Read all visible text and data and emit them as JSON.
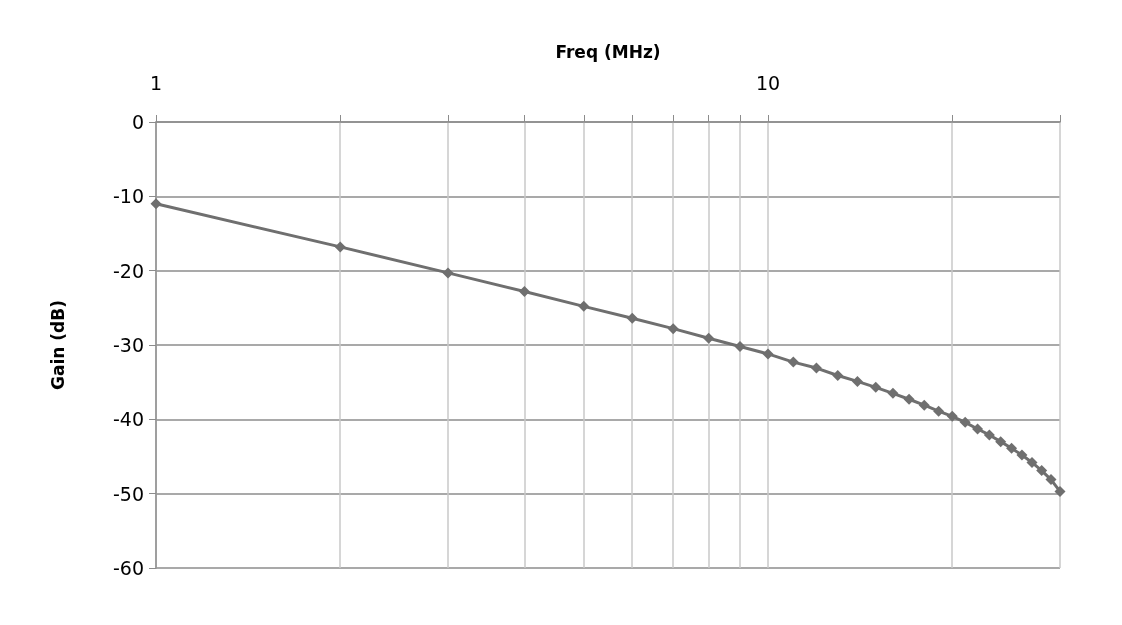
{
  "chart_data": {
    "type": "line",
    "xlabel": "Freq (MHz)",
    "ylabel": "Gain (dB)",
    "x": [
      1,
      2,
      3,
      4,
      5,
      6,
      7,
      8,
      9,
      10,
      11,
      12,
      13,
      14,
      15,
      16,
      17,
      18,
      19,
      20,
      21,
      22,
      23,
      24,
      25,
      26,
      27,
      28,
      29,
      30
    ],
    "series": [
      {
        "color": "#6f6f6f",
        "values": [
          -11.0,
          -16.8,
          -20.3,
          -22.8,
          -24.8,
          -26.4,
          -27.8,
          -29.1,
          -30.2,
          -31.2,
          -32.3,
          -33.1,
          -34.1,
          -34.9,
          -35.7,
          -36.5,
          -37.3,
          -38.1,
          -38.9,
          -39.6,
          -40.4,
          -41.3,
          -42.1,
          -43.0,
          -43.9,
          -44.8,
          -45.8,
          -46.9,
          -48.1,
          -49.7
        ]
      }
    ],
    "log": "x",
    "xlim": [
      1,
      30
    ],
    "xticks": [
      1,
      {
        "value": 2,
        "label": null
      },
      {
        "value": 3,
        "label": null
      },
      {
        "value": 4,
        "label": null
      },
      {
        "value": 5,
        "label": null
      },
      {
        "value": 6,
        "label": null
      },
      {
        "value": 7,
        "label": null
      },
      {
        "value": 8,
        "label": null
      },
      {
        "value": 9,
        "label": null
      },
      10,
      {
        "value": 20,
        "label": null
      },
      {
        "value": 30,
        "label": null
      }
    ],
    "ylim": [
      -60,
      0
    ],
    "yticks": [
      -60,
      -50,
      -40,
      -30,
      -20,
      -10,
      0
    ],
    "grid": true,
    "marker": "diamond",
    "line_style": "solid"
  }
}
